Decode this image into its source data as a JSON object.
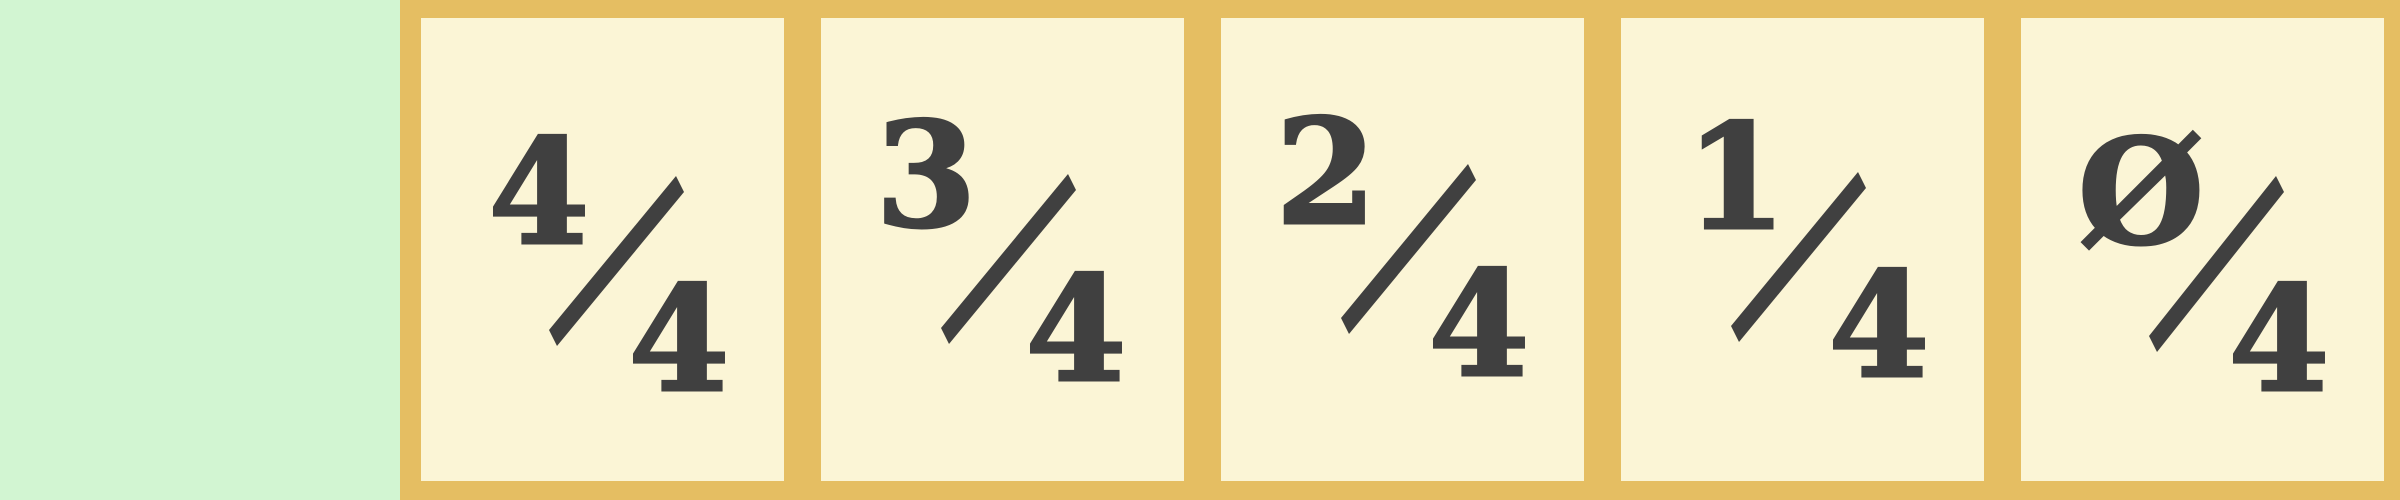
{
  "cards": [
    {
      "numerator": "4",
      "denominator": "4"
    },
    {
      "numerator": "3",
      "denominator": "4"
    },
    {
      "numerator": "2",
      "denominator": "4"
    },
    {
      "numerator": "1",
      "denominator": "4"
    },
    {
      "numerator": "Ø",
      "denominator": "4"
    }
  ],
  "colors": {
    "background": "#d2f5d2",
    "tray": "#e5be62",
    "card": "#fbf5d6",
    "ink": "#404040"
  }
}
